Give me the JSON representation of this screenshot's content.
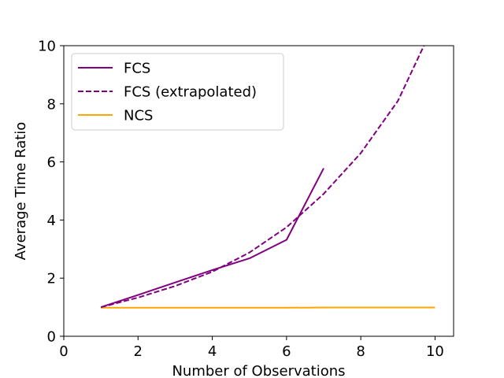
{
  "chart_data": {
    "type": "line",
    "xlabel": "Number of Observations",
    "ylabel": "Average Time Ratio",
    "xlim": [
      0,
      10.5
    ],
    "ylim": [
      0,
      10
    ],
    "xticks": [
      0,
      2,
      4,
      6,
      8,
      10
    ],
    "yticks": [
      0,
      2,
      4,
      6,
      8,
      10
    ],
    "grid": false,
    "legend_position": "top-left",
    "series": [
      {
        "name": "FCS",
        "color": "#800080",
        "style": "solid",
        "x": [
          1,
          2,
          3,
          4,
          5,
          6,
          7
        ],
        "y": [
          1.0,
          1.42,
          1.85,
          2.28,
          2.68,
          3.32,
          5.78
        ]
      },
      {
        "name": "FCS (extrapolated)",
        "color": "#800080",
        "style": "dashed",
        "x": [
          1,
          2,
          3,
          4,
          5,
          6,
          7,
          8,
          9,
          9.7
        ],
        "y": [
          1.0,
          1.33,
          1.73,
          2.22,
          2.88,
          3.75,
          4.9,
          6.3,
          8.1,
          10.0
        ]
      },
      {
        "name": "NCS",
        "color": "#FFA500",
        "style": "solid",
        "x": [
          1,
          2,
          3,
          4,
          5,
          6,
          7,
          8,
          9,
          10
        ],
        "y": [
          0.98,
          0.98,
          0.98,
          0.98,
          0.98,
          0.98,
          0.99,
          0.99,
          0.99,
          0.99
        ]
      }
    ]
  }
}
